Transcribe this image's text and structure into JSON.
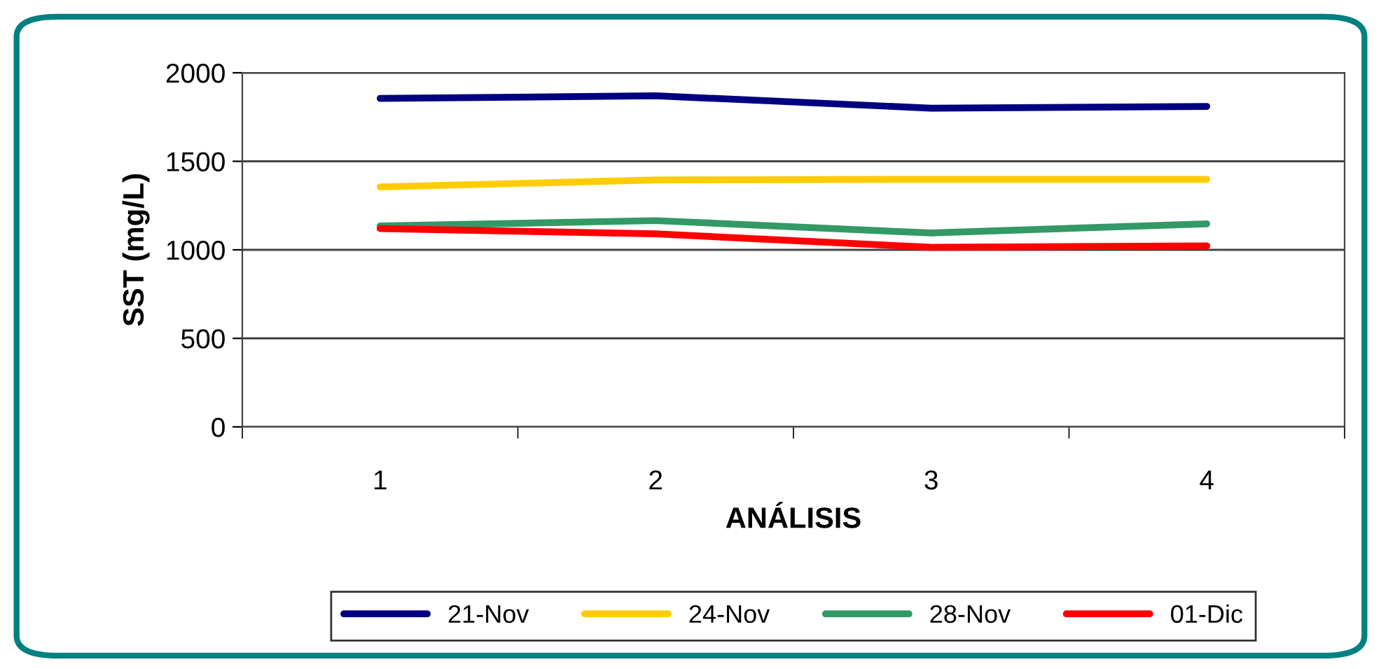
{
  "chart_data": {
    "type": "line",
    "xlabel": "ANÁLISIS",
    "ylabel": "SST (mg/L)",
    "categories": [
      "1",
      "2",
      "3",
      "4"
    ],
    "series": [
      {
        "name": "21-Nov",
        "color": "#000080",
        "values": [
          1855,
          1870,
          1800,
          1810
        ]
      },
      {
        "name": "24-Nov",
        "color": "#ffcc00",
        "values": [
          1355,
          1395,
          1398,
          1398
        ]
      },
      {
        "name": "28-Nov",
        "color": "#339966",
        "values": [
          1135,
          1165,
          1095,
          1147
        ]
      },
      {
        "name": "01-Dic",
        "color": "#ff0000",
        "values": [
          1120,
          1090,
          1014,
          1022
        ]
      }
    ],
    "ylim": [
      0,
      2000
    ],
    "yticks": [
      0,
      500,
      1000,
      1500,
      2000
    ],
    "grid": "y",
    "legend": "bottom",
    "marker": "none",
    "line_style": "solid"
  }
}
